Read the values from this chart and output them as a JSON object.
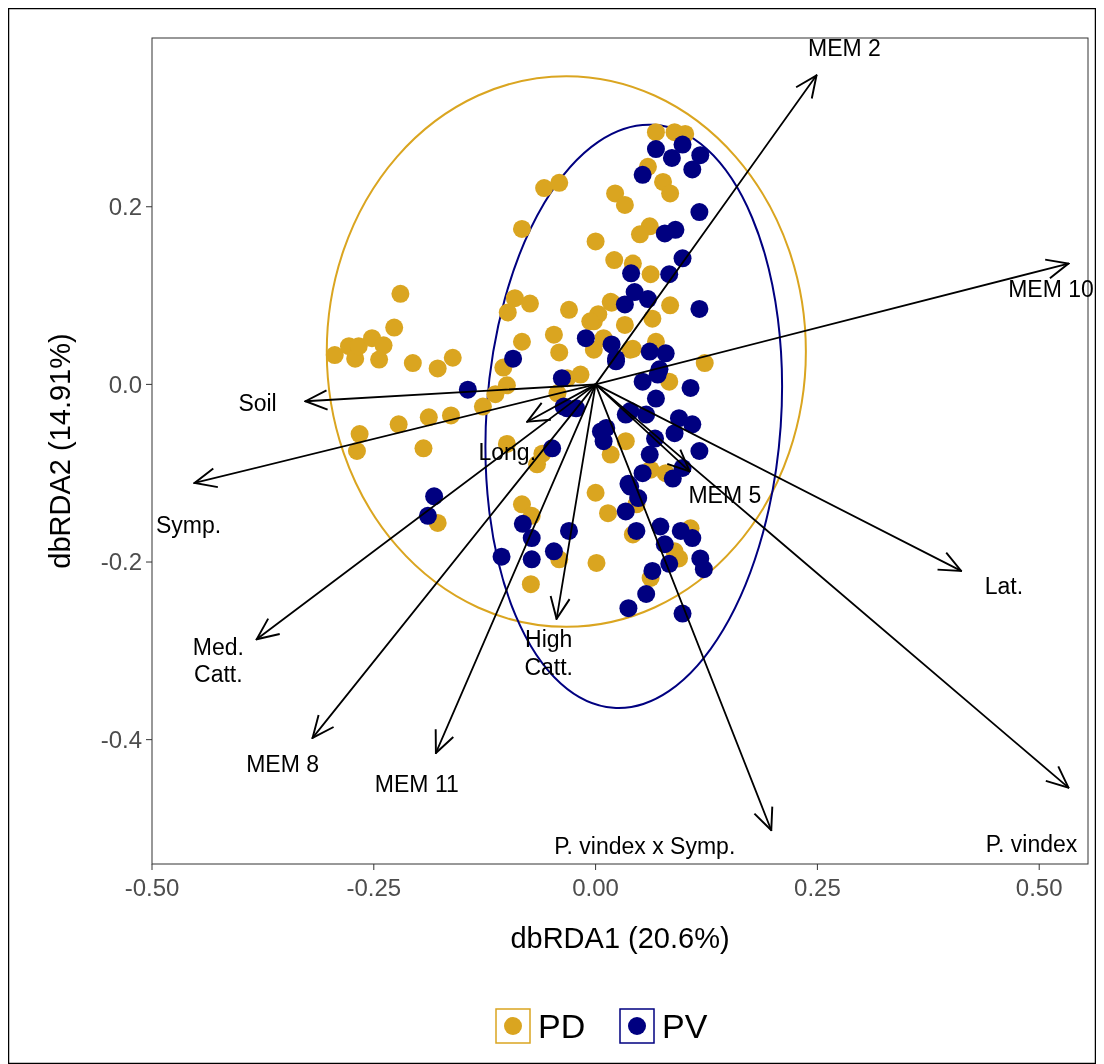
{
  "chart_data": {
    "type": "scatter",
    "xlabel": "dbRDA1 (20.6%)",
    "ylabel": "dbRDA2 (14.91%)",
    "xlim": [
      -0.5,
      0.555
    ],
    "ylim": [
      -0.54,
      0.39
    ],
    "xticks": [
      {
        "value": -0.5,
        "label": "-0.50"
      },
      {
        "value": -0.25,
        "label": "-0.25"
      },
      {
        "value": 0,
        "label": "0.00"
      },
      {
        "value": 0.25,
        "label": "0.25"
      },
      {
        "value": 0.5,
        "label": "0.50"
      }
    ],
    "yticks": [
      {
        "value": -0.4,
        "label": "-0.4"
      },
      {
        "value": -0.2,
        "label": "-0.2"
      },
      {
        "value": 0,
        "label": "0.0"
      },
      {
        "value": 0.2,
        "label": "0.2"
      }
    ],
    "grid": false,
    "legend": "bottom",
    "series": [
      {
        "name": "PD",
        "color": "#daa520",
        "marker": "circle",
        "x": [
          -0.294,
          -0.278,
          -0.271,
          -0.267,
          -0.252,
          -0.239,
          -0.244,
          -0.227,
          -0.22,
          -0.206,
          -0.178,
          -0.161,
          -0.083,
          -0.058,
          -0.041,
          0,
          -0.091,
          -0.074,
          -0.099,
          -0.083,
          -0.104,
          -0.1,
          -0.113,
          -0.127,
          -0.163,
          -0.188,
          -0.222,
          -0.266,
          -0.269,
          -0.194,
          -0.1,
          -0.047,
          -0.041,
          -0.03,
          -0.002,
          0.003,
          0.017,
          -0.002,
          0.009,
          -0.032,
          -0.017,
          -0.043,
          -0.06,
          -0.066,
          -0.178,
          -0.083,
          -0.072,
          0,
          0.014,
          -0.041,
          0.001,
          -0.073,
          null,
          0.017,
          0.068,
          0.089,
          0.101,
          0.059,
          0.076,
          0.084,
          0.022,
          0.033,
          0.061,
          0.05,
          0.021,
          0.042,
          0.062,
          0.084,
          0.018,
          -0.006,
          0.033,
          0.064,
          0.068,
          0.039,
          0.123,
          0.083,
          0.034,
          0.062,
          0.079,
          0.046,
          0.042,
          0.107,
          0.089,
          0.094,
          0.062,
          0.042
        ],
        "values": [
          0.033,
          0.043,
          0.029,
          0.043,
          0.052,
          0.044,
          0.028,
          0.064,
          0.102,
          0.024,
          0.018,
          0.03,
          0.175,
          0.221,
          0.227,
          0.161,
          0.097,
          0.091,
          0.081,
          0.048,
          0.019,
          -0.001,
          -0.011,
          -0.025,
          -0.035,
          -0.037,
          -0.045,
          -0.056,
          -0.075,
          -0.072,
          -0.067,
          0.056,
          0.036,
          0.084,
          0.071,
          0.079,
          0.093,
          0.039,
          0.052,
          0.007,
          0.011,
          -0.01,
          -0.078,
          -0.09,
          -0.156,
          -0.135,
          -0.148,
          -0.122,
          -0.145,
          -0.197,
          -0.201,
          -0.225,
          null,
          -0.079,
          0.284,
          0.284,
          0.282,
          0.245,
          0.228,
          0.215,
          0.215,
          0.202,
          0.178,
          0.169,
          0.14,
          0.136,
          0.124,
          0.089,
          0.092,
          0.071,
          0.067,
          0.074,
          0.048,
          0.039,
          0.024,
          0.003,
          -0.064,
          -0.096,
          -0.1,
          -0.135,
          -0.169,
          -0.162,
          -0.188,
          -0.196,
          -0.218,
          0.04
        ]
      },
      {
        "name": "PV",
        "color": "#000080",
        "marker": "circle",
        "x": [
          -0.011,
          -0.093,
          -0.144,
          -0.038,
          -0.032,
          -0.049,
          0.009,
          0.012,
          -0.036,
          -0.022,
          -0.182,
          -0.189,
          -0.082,
          -0.072,
          -0.03,
          -0.047,
          -0.072,
          -0.106,
          0.023,
          0.034,
          0.037,
          0.034,
          0.068,
          0.086,
          0.098,
          0.118,
          0.109,
          0.053,
          0.117,
          0.078,
          0.09,
          0.098,
          0.04,
          0.083,
          0.044,
          0.059,
          0.033,
          0.117,
          0.018,
          0.023,
          0.079,
          0.061,
          0.072,
          0.053,
          0.07,
          0.107,
          0.068,
          0.039,
          0.057,
          0.094,
          0.109,
          0.006,
          0.067,
          0.089,
          0.117,
          0.061,
          0.098,
          0.053,
          0.039,
          0.087,
          0.048,
          0.073,
          0.096,
          0.109,
          0.078,
          0.046,
          0.118,
          0.122,
          0.083,
          0.064,
          0.057,
          0.037,
          0.098
        ],
        "values": [
          0.052,
          0.029,
          -0.006,
          0.007,
          -0.027,
          -0.072,
          -0.064,
          -0.049,
          -0.025,
          -0.027,
          -0.126,
          -0.148,
          -0.157,
          -0.173,
          -0.165,
          -0.188,
          -0.197,
          -0.194,
          0.026,
          -0.034,
          -0.112,
          -0.143,
          0.265,
          0.255,
          0.27,
          0.258,
          0.242,
          0.236,
          0.194,
          0.17,
          0.174,
          0.142,
          0.125,
          0.124,
          0.104,
          0.096,
          0.09,
          0.085,
          0.045,
          0.029,
          0.035,
          0.037,
          0.017,
          0.003,
          0.011,
          -0.004,
          -0.016,
          -0.03,
          -0.034,
          -0.038,
          -0.045,
          -0.053,
          -0.061,
          -0.055,
          -0.075,
          -0.079,
          -0.094,
          -0.1,
          -0.115,
          -0.106,
          -0.128,
          -0.16,
          -0.165,
          -0.173,
          -0.18,
          -0.165,
          -0.196,
          -0.208,
          -0.202,
          -0.21,
          -0.236,
          -0.252,
          -0.258
        ]
      },
      {
        "type": "line",
        "color": "#000000",
        "name": "MEM 2",
        "marker": "none",
        "x": [
          0,
          0.249
        ],
        "values": [
          0,
          0.348
        ]
      },
      {
        "type": "line",
        "color": "#000000",
        "name": "MEM 10",
        "marker": "none",
        "x": [
          0,
          0.533
        ],
        "values": [
          0,
          0.136
        ]
      },
      {
        "type": "line",
        "color": "#000000",
        "name": "Soil",
        "marker": "none",
        "x": [
          0,
          -0.327
        ],
        "values": [
          0,
          -0.019
        ]
      },
      {
        "type": "line",
        "color": "#000000",
        "name": "Long.",
        "marker": "none",
        "x": [
          0,
          -0.077
        ],
        "values": [
          0,
          -0.042
        ]
      },
      {
        "type": "line",
        "color": "#000000",
        "name": "Symp.",
        "marker": "none",
        "x": [
          0,
          -0.452
        ],
        "values": [
          0,
          -0.111
        ]
      },
      {
        "type": "line",
        "color": "#000000",
        "name": "Med.\nCatt.",
        "marker": "none",
        "x": [
          0,
          -0.382
        ],
        "values": [
          0,
          -0.287
        ]
      },
      {
        "type": "line",
        "color": "#000000",
        "name": "MEM 8",
        "marker": "none",
        "x": [
          0,
          -0.319
        ],
        "values": [
          0,
          -0.398
        ]
      },
      {
        "type": "line",
        "color": "#000000",
        "name": "MEM 11",
        "marker": "none",
        "x": [
          0,
          -0.18
        ],
        "values": [
          0,
          -0.415
        ]
      },
      {
        "type": "line",
        "color": "#000000",
        "name": "High\nCatt.",
        "marker": "none",
        "x": [
          0,
          -0.044
        ],
        "values": [
          0,
          -0.264
        ]
      },
      {
        "type": "line",
        "color": "#000000",
        "name": "P. vindex x Symp.",
        "marker": "none",
        "x": [
          0,
          0.198
        ],
        "values": [
          0,
          -0.502
        ]
      },
      {
        "type": "line",
        "color": "#000000",
        "name": "P. vindex",
        "marker": "none",
        "x": [
          0,
          0.533
        ],
        "values": [
          0,
          -0.454
        ]
      },
      {
        "type": "line",
        "color": "#000000",
        "name": "Lat.",
        "marker": "none",
        "x": [
          0,
          0.412
        ],
        "values": [
          0,
          -0.21
        ]
      },
      {
        "type": "line",
        "color": "#000000",
        "name": "MEM 5",
        "marker": "none",
        "x": [
          0,
          0.106
        ],
        "values": [
          0,
          -0.098
        ]
      }
    ]
  }
}
